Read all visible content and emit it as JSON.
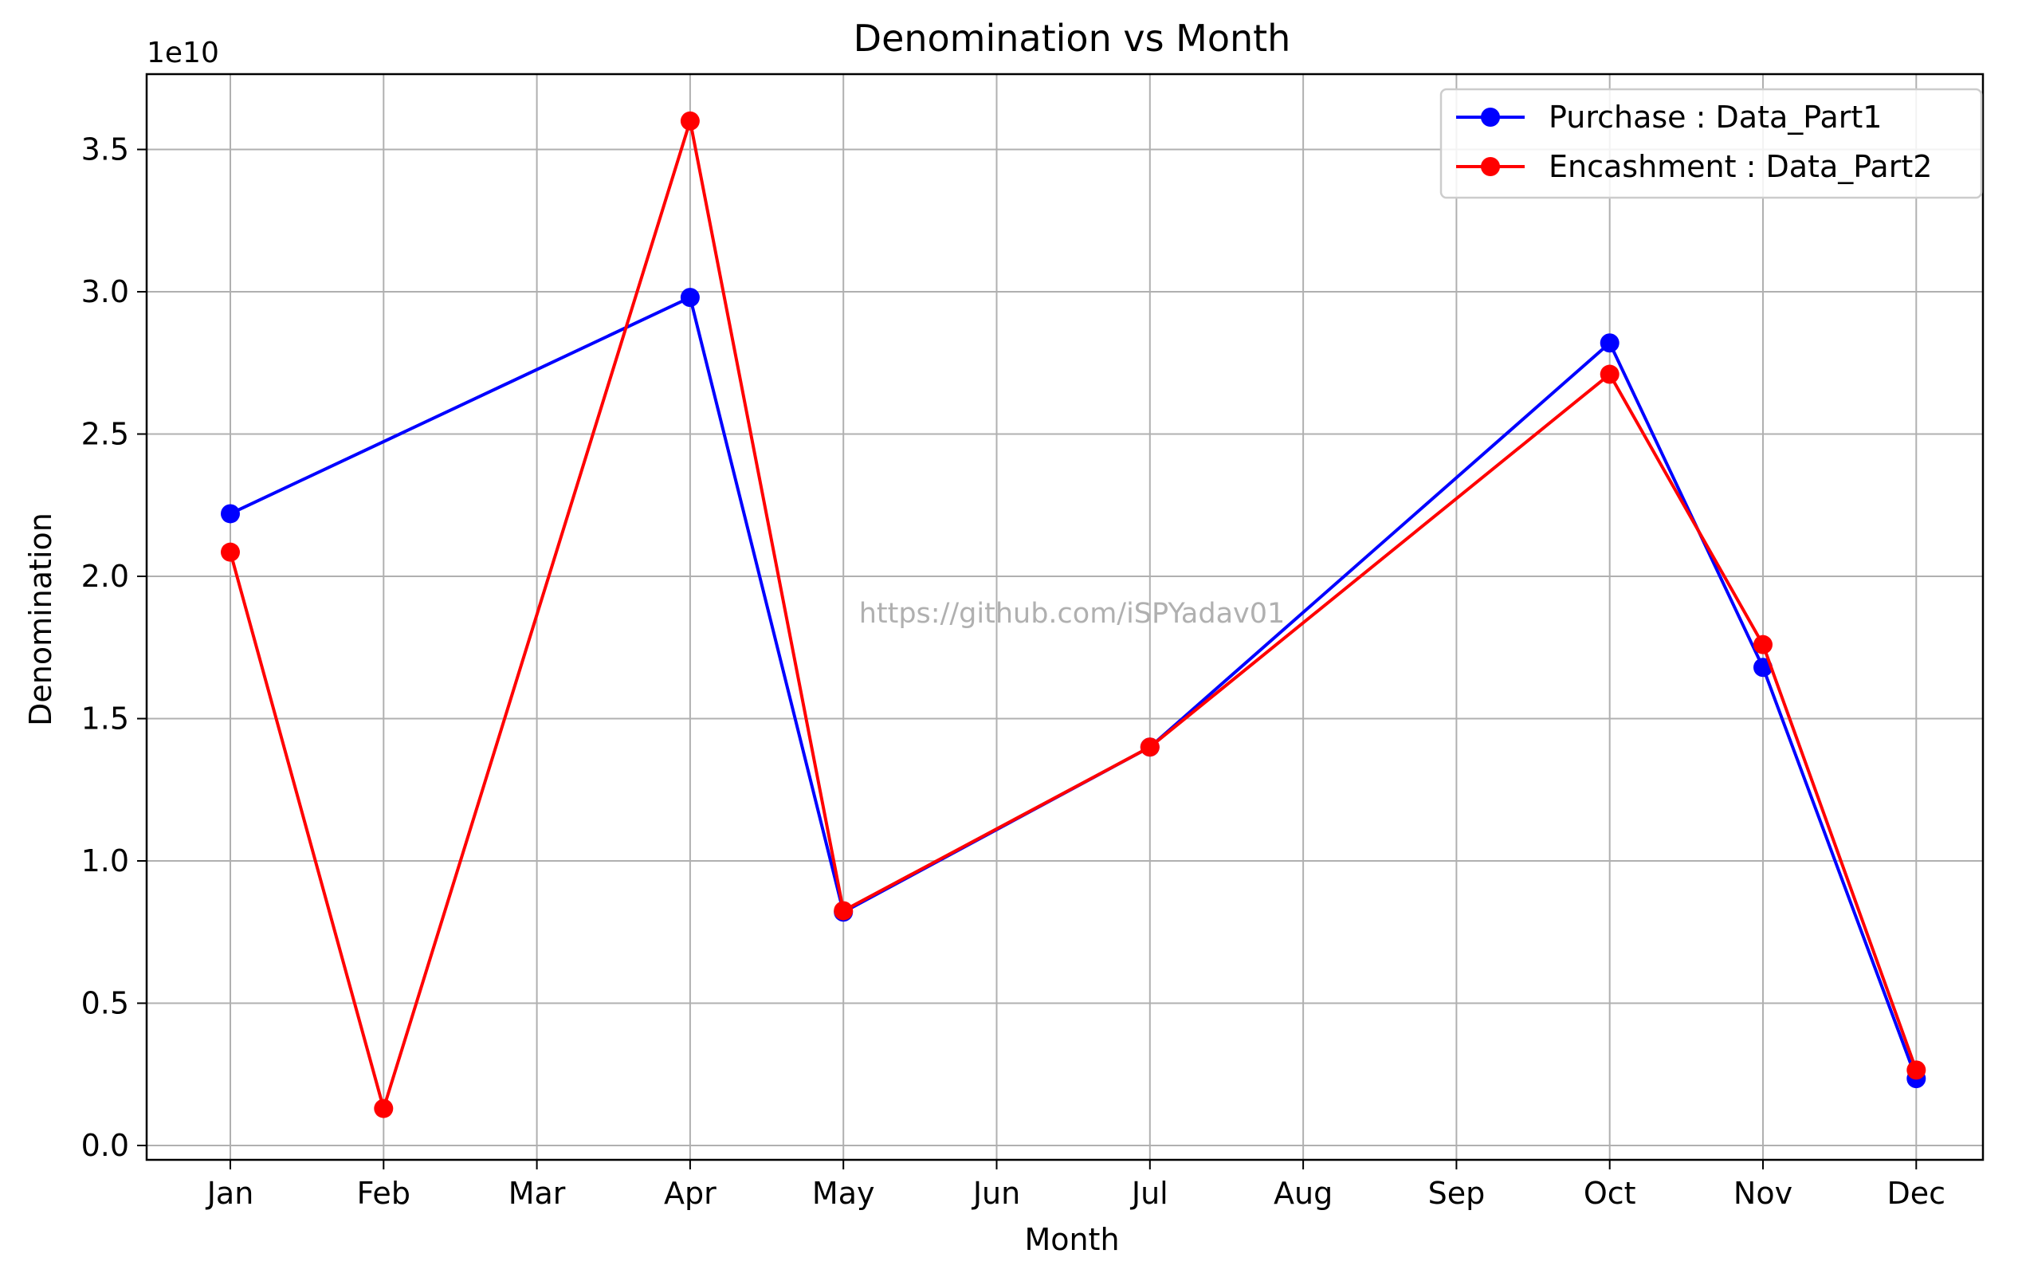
{
  "chart_data": {
    "type": "line",
    "title": "Denomination vs Month",
    "xlabel": "Month",
    "ylabel": "Denomination",
    "y_offset_label": "1e10",
    "watermark": "https://github.com/iSPYadav01",
    "categories": [
      "Jan",
      "Feb",
      "Mar",
      "Apr",
      "May",
      "Jun",
      "Jul",
      "Aug",
      "Sep",
      "Oct",
      "Nov",
      "Dec"
    ],
    "y_ticks": [
      0.0,
      0.5,
      1.0,
      1.5,
      2.0,
      2.5,
      3.0,
      3.5
    ],
    "y_tick_labels": [
      "0.0",
      "0.5",
      "1.0",
      "1.5",
      "2.0",
      "2.5",
      "3.0",
      "3.5"
    ],
    "ylim": [
      -0.03,
      3.77
    ],
    "y_scale_note": "values in units of 1e10",
    "grid": true,
    "legend_position": "top-right",
    "series": [
      {
        "name": "Purchase : Data_Part1",
        "color": "#0000ff",
        "points": [
          {
            "x": "Jan",
            "y": 2.22
          },
          {
            "x": "Apr",
            "y": 2.98
          },
          {
            "x": "May",
            "y": 0.82
          },
          {
            "x": "Jul",
            "y": 1.4
          },
          {
            "x": "Oct",
            "y": 2.82
          },
          {
            "x": "Nov",
            "y": 1.68
          },
          {
            "x": "Dec",
            "y": 0.235
          }
        ]
      },
      {
        "name": "Encashment : Data_Part2",
        "color": "#ff0000",
        "points": [
          {
            "x": "Jan",
            "y": 2.085
          },
          {
            "x": "Feb",
            "y": 0.13
          },
          {
            "x": "Apr",
            "y": 3.6
          },
          {
            "x": "May",
            "y": 0.825
          },
          {
            "x": "Jul",
            "y": 1.4
          },
          {
            "x": "Oct",
            "y": 2.71
          },
          {
            "x": "Nov",
            "y": 1.76
          },
          {
            "x": "Dec",
            "y": 0.265
          }
        ]
      }
    ]
  }
}
